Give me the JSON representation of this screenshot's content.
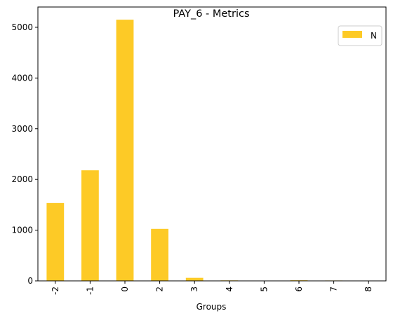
{
  "chart_data": {
    "type": "bar",
    "title": "PAY_6 - Metrics",
    "xlabel": "Groups",
    "ylabel": "",
    "categories": [
      "-2",
      "-1",
      "0",
      "2",
      "3",
      "4",
      "5",
      "6",
      "7",
      "8"
    ],
    "series": [
      {
        "name": "N",
        "color": "#fdca26",
        "values": [
          1535,
          2180,
          5150,
          1025,
          60,
          10,
          3,
          12,
          8,
          2
        ]
      }
    ],
    "ylim": [
      0,
      5400
    ],
    "yticks": [
      0,
      1000,
      2000,
      3000,
      4000,
      5000
    ],
    "grid": false,
    "legend": "top-right"
  }
}
